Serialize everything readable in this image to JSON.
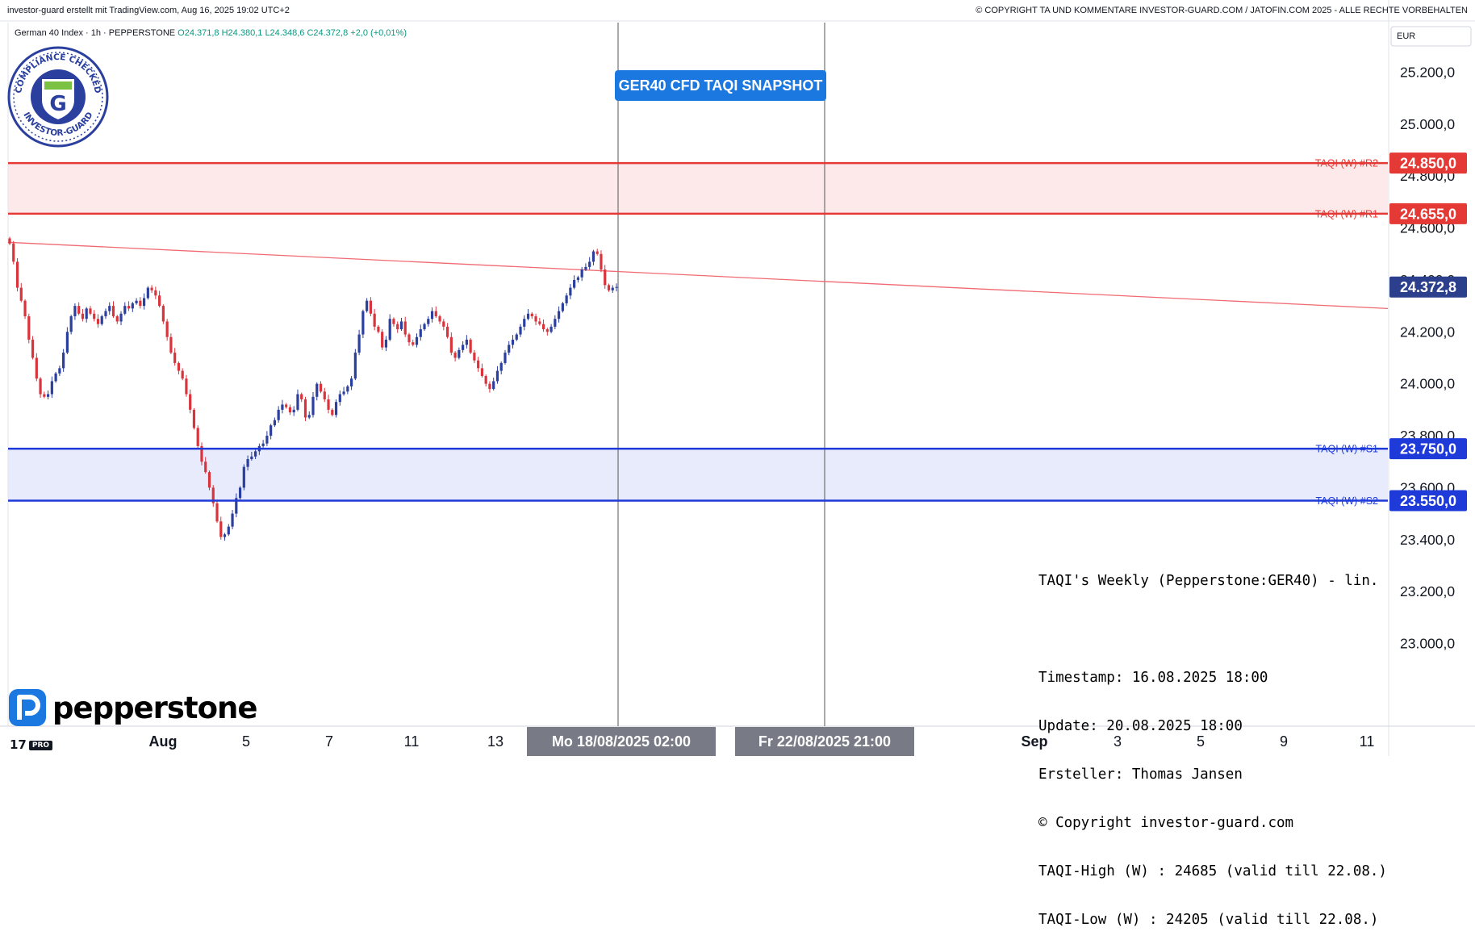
{
  "header": {
    "left": "investor-guard erstellt mit TradingView.com, Aug 16, 2025 19:02 UTC+2",
    "right": "© COPYRIGHT TA UND KOMMENTARE INVESTOR-GUARD.COM / JATOFIN.COM 2025 - ALLE RECHTE VORBEHALTEN"
  },
  "symbol": {
    "name": "German 40 Index · 1h · PEPPERSTONE",
    "open": "O24.371,8",
    "high": "H24.380,1",
    "low": "L24.348,6",
    "close": "C24.372,8",
    "change": "+2,0 (+0,01%)"
  },
  "badge": {
    "top": "COMPLIANCE CHECKED",
    "bottom": "INVESTOR-GUARD",
    "letter": "G"
  },
  "snapshot_label": "GER40 CFD TAQI SNAPSHOT",
  "info_box": [
    "TAQI's Weekly (Pepperstone:GER40) - lin.",
    "",
    "Timestamp: 16.08.2025 18:00",
    "Update: 20.08.2025 18:00",
    "Ersteller: Thomas Jansen",
    "© Copyright investor-guard.com",
    "TAQI-High (W) : 24685 (valid till 22.08.)",
    "TAQI-Low (W) : 24205 (valid till 22.08.)"
  ],
  "pepperstone_logo": "pepperstone",
  "tv_logo": {
    "mark": "17",
    "pro": "PRO"
  },
  "colors": {
    "resistance": "#e53935",
    "resistance_fill": "#fde9ea",
    "support": "#1e3ad8",
    "support_fill": "#e8ebfb",
    "candle_up": "#2a3f9e",
    "candle_down": "#d9343c",
    "trendline": "#f06a73",
    "price_badge": "#2c3f8c",
    "snapshot": "#1a78e0"
  },
  "chart_data": {
    "type": "candlestick",
    "currency": "EUR",
    "ylim": [
      22900,
      25300
    ],
    "y_ticks": [
      "25.200,0",
      "25.000,0",
      "24.800,0",
      "24.600,0",
      "24.400,0",
      "24.200,0",
      "24.000,0",
      "23.800,0",
      "23.600,0",
      "23.400,0",
      "23.200,0",
      "23.000,0"
    ],
    "y_tick_values": [
      25200,
      25000,
      24800,
      24600,
      24400,
      24200,
      24000,
      23800,
      23600,
      23400,
      23200,
      23000
    ],
    "x_ticks": [
      {
        "label": "Aug",
        "bold": true
      },
      {
        "label": "5"
      },
      {
        "label": "7"
      },
      {
        "label": "11"
      },
      {
        "label": "13"
      },
      {
        "label": "Mo 18/08/2025   02:00",
        "highlight": true
      },
      {
        "label": "Fr 22/08/2025   21:00",
        "highlight": true
      },
      {
        "label": "Sep",
        "bold": true
      },
      {
        "label": "3"
      },
      {
        "label": "5"
      },
      {
        "label": "9"
      },
      {
        "label": "11"
      }
    ],
    "levels": [
      {
        "name": "TAQI (W) #R2",
        "value": 24850,
        "label": "24.850,0",
        "kind": "resistance"
      },
      {
        "name": "TAQI (W) #R1",
        "value": 24655,
        "label": "24.655,0",
        "kind": "resistance"
      },
      {
        "name": "TAQI (W) #S1",
        "value": 23750,
        "label": "23.750,0",
        "kind": "support"
      },
      {
        "name": "TAQI (W) #S2",
        "value": 23550,
        "label": "23.550,0",
        "kind": "support"
      }
    ],
    "last_price": {
      "value": 24372.8,
      "label": "24.372,8"
    },
    "trendline": {
      "from": {
        "date": "2025-07-31 10:00",
        "value": 24545
      },
      "to": {
        "date": "2025-09-12 18:00",
        "value": 24290
      }
    },
    "closes": [
      24540,
      24470,
      24370,
      24320,
      24260,
      24170,
      24100,
      24020,
      23960,
      23950,
      23960,
      24010,
      24040,
      24060,
      24120,
      24200,
      24260,
      24300,
      24270,
      24250,
      24290,
      24270,
      24250,
      24230,
      24260,
      24280,
      24300,
      24260,
      24240,
      24270,
      24300,
      24290,
      24310,
      24320,
      24300,
      24330,
      24370,
      24360,
      24340,
      24300,
      24240,
      24180,
      24120,
      24080,
      24050,
      24020,
      23960,
      23900,
      23830,
      23760,
      23700,
      23660,
      23600,
      23540,
      23470,
      23410,
      23420,
      23450,
      23500,
      23560,
      23600,
      23680,
      23710,
      23720,
      23740,
      23760,
      23770,
      23800,
      23840,
      23860,
      23900,
      23920,
      23910,
      23890,
      23900,
      23960,
      23940,
      23870,
      23880,
      23950,
      24000,
      23970,
      23940,
      23900,
      23880,
      23930,
      23960,
      23970,
      23990,
      24020,
      24120,
      24190,
      24280,
      24320,
      24270,
      24220,
      24200,
      24140,
      24170,
      24250,
      24230,
      24210,
      24240,
      24190,
      24160,
      24150,
      24180,
      24210,
      24230,
      24250,
      24280,
      24260,
      24240,
      24220,
      24180,
      24120,
      24100,
      24130,
      24150,
      24170,
      24120,
      24090,
      24060,
      24030,
      24000,
      23980,
      24010,
      24050,
      24080,
      24120,
      24150,
      24170,
      24190,
      24220,
      24250,
      24270,
      24260,
      24240,
      24230,
      24210,
      24200,
      24220,
      24250,
      24280,
      24310,
      24340,
      24370,
      24400,
      24410,
      24440,
      24450,
      24470,
      24510,
      24500,
      24440,
      24380,
      24360,
      24370,
      24372.8
    ],
    "vlines": [
      "Mo 18/08/2025 02:00",
      "Fr 22/08/2025 21:00"
    ]
  }
}
